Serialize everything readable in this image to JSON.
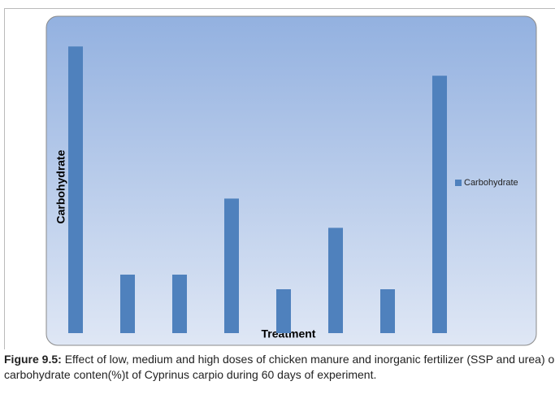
{
  "chart_data": {
    "type": "bar",
    "categories": [
      null,
      null,
      null,
      null,
      null,
      null,
      null,
      null
    ],
    "series": [
      {
        "name": "Carbohydrate",
        "color": "#4f81bd",
        "values": [
          98,
          20,
          20,
          46,
          15,
          36,
          15,
          88
        ]
      }
    ],
    "x_label": "Treatment",
    "y_label": "Carbohydrate",
    "ylim": [
      0,
      100
    ],
    "legend": "right"
  },
  "caption": {
    "label": "Figure 9.5:",
    "text": "Effect of low, medium and high doses of chicken manure and inorganic fertilizer (SSP and urea) on carbohydrate conten(%)t of Cyprinus carpio during 60 days of experiment."
  }
}
